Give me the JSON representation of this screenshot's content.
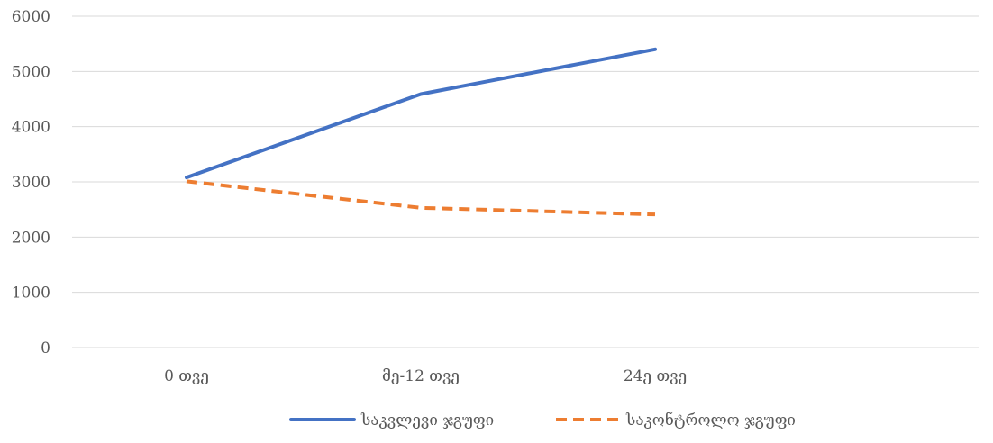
{
  "chart_data": {
    "type": "line",
    "categories": [
      "0 თვე",
      "მე-12 თვე",
      "24ე თვე"
    ],
    "series": [
      {
        "name": "საკვლევი ჯგუფი",
        "values": [
          3080,
          4590,
          5400
        ],
        "color": "#4472c4",
        "dash": "solid"
      },
      {
        "name": "საკონტროლო ჯგუფი",
        "values": [
          3010,
          2530,
          2410
        ],
        "color": "#ed7d31",
        "dash": "dashed"
      }
    ],
    "yticks": [
      "0",
      "1000",
      "2000",
      "3000",
      "4000",
      "5000",
      "6000"
    ],
    "ylim": [
      0,
      6000
    ],
    "grid": true,
    "legend_position": "bottom"
  }
}
